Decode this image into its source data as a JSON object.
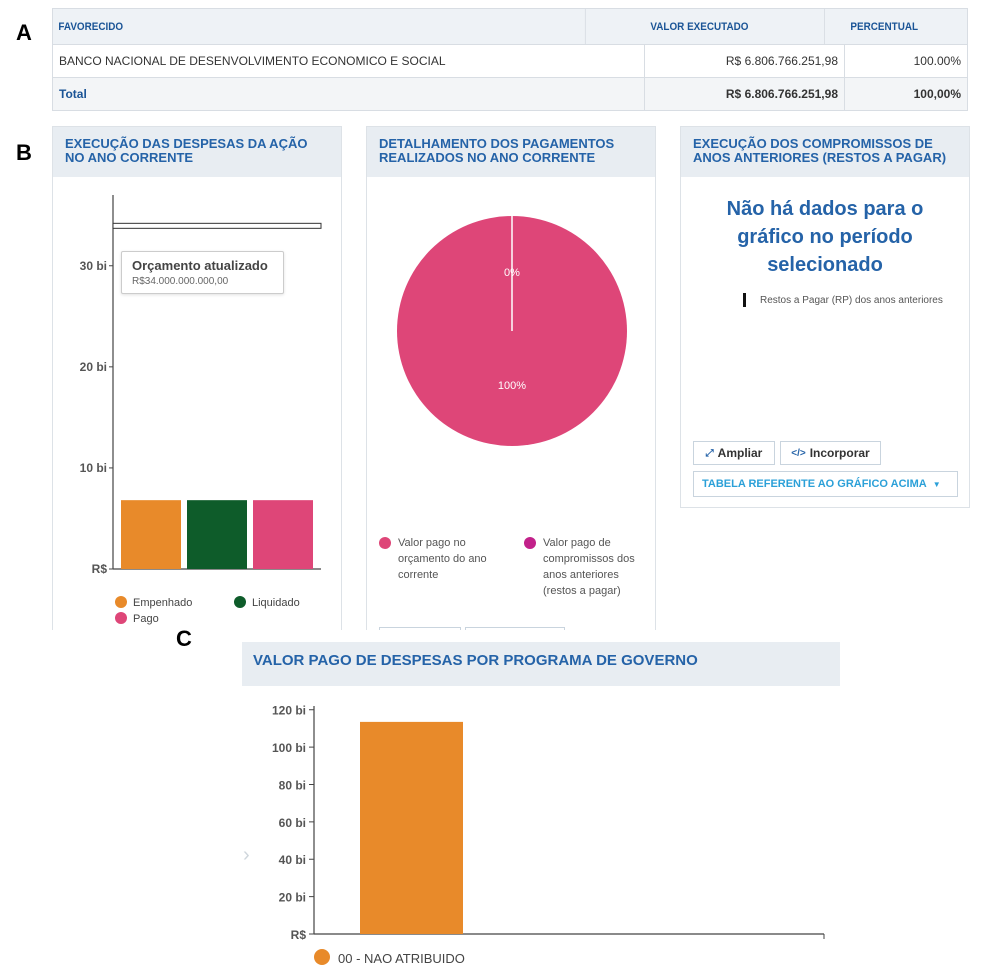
{
  "panels": {
    "a": "A",
    "b": "B",
    "c": "C"
  },
  "table": {
    "headers": [
      "FAVORECIDO",
      "VALOR EXECUTADO",
      "PERCENTUAL"
    ],
    "row": {
      "favorecido": "BANCO NACIONAL DE DESENVOLVIMENTO ECONOMICO E SOCIAL",
      "valor": "R$ 6.806.766.251,98",
      "percentual": "100.00%"
    },
    "total": {
      "label": "Total",
      "valor": "R$ 6.806.766.251,98",
      "percentual": "100,00%"
    }
  },
  "card1": {
    "title": "EXECUÇÃO DAS DESPESAS DA AÇÃO NO ANO CORRENTE",
    "tooltip": {
      "title": "Orçamento atualizado",
      "value": "R$34.000.000.000,00"
    }
  },
  "card2": {
    "title": "DETALHAMENTO DOS PAGAMENTOS REALIZADOS NO ANO CORRENTE"
  },
  "card3": {
    "title": "EXECUÇÃO DOS COMPROMISSOS DE ANOS ANTERIORES (RESTOS A PAGAR)",
    "no_data_lines": [
      "Não há dados para o",
      "gráfico no período",
      "selecionado"
    ],
    "legend": "Restos a Pagar (RP) dos anos anteriores",
    "btn_ampliar": "Ampliar",
    "btn_incorporar": "Incorporar",
    "btn_tabela": "TABELA REFERENTE AO GRÁFICO ACIMA",
    "icons": {
      "ampliar": "expand-icon",
      "incorporar": "code-icon",
      "tabela": "caret-down-icon"
    }
  },
  "card4": {
    "title": "VALOR PAGO DE DESPESAS POR PROGRAMA DE GOVERNO"
  },
  "colors": {
    "orange": "#e88a2a",
    "darkgreen": "#0e5c2a",
    "pink": "#de4678",
    "magenta": "#c2218a",
    "blue": "#2563a8"
  },
  "chart_data": [
    {
      "type": "bar",
      "title": "EXECUÇÃO DAS DESPESAS DA AÇÃO NO ANO CORRENTE",
      "categories": [
        "Empenhado",
        "Liquidado",
        "Pago"
      ],
      "values": [
        6.81,
        6.81,
        6.81
      ],
      "reference": {
        "name": "Orçamento atualizado",
        "value": 34.0
      },
      "yticks": [
        {
          "v": 0,
          "label": "R$"
        },
        {
          "v": 10,
          "label": "10 bi"
        },
        {
          "v": 20,
          "label": "20 bi"
        },
        {
          "v": 30,
          "label": "30 bi"
        }
      ],
      "ylim": [
        0,
        37
      ],
      "legend": [
        "Empenhado",
        "Liquidado",
        "Pago"
      ],
      "legend_position": "bottom",
      "colors": [
        "#e88a2a",
        "#0e5c2a",
        "#de4678"
      ]
    },
    {
      "type": "pie",
      "title": "DETALHAMENTO DOS PAGAMENTOS REALIZADOS NO ANO CORRENTE",
      "slices": [
        {
          "name": "Valor pago no orçamento do ano corrente",
          "value": 100,
          "label": "100%",
          "color": "#de4678"
        },
        {
          "name": "Valor pago de compromissos dos anos anteriores (restos a pagar)",
          "value": 0,
          "label": "0%",
          "color": "#c2218a"
        }
      ],
      "legend_lines": [
        [
          "Valor pago no",
          "orçamento do ano",
          "corrente"
        ],
        [
          "Valor pago de",
          "compromissos dos",
          "anos anteriores",
          "(restos a pagar)"
        ]
      ],
      "legend_position": "bottom"
    },
    {
      "type": "bar",
      "title": "VALOR PAGO DE DESPESAS POR PROGRAMA DE GOVERNO",
      "categories": [
        "00 - NAO ATRIBUIDO"
      ],
      "values": [
        113.5
      ],
      "yticks": [
        {
          "v": 0,
          "label": "R$"
        },
        {
          "v": 20,
          "label": "20 bi"
        },
        {
          "v": 40,
          "label": "40 bi"
        },
        {
          "v": 60,
          "label": "60 bi"
        },
        {
          "v": 80,
          "label": "80 bi"
        },
        {
          "v": 100,
          "label": "100 bi"
        },
        {
          "v": 120,
          "label": "120 bi"
        }
      ],
      "ylim": [
        0,
        122
      ],
      "legend": [
        "00 - NAO ATRIBUIDO"
      ],
      "legend_position": "bottom-left",
      "colors": [
        "#e88a2a"
      ]
    }
  ]
}
